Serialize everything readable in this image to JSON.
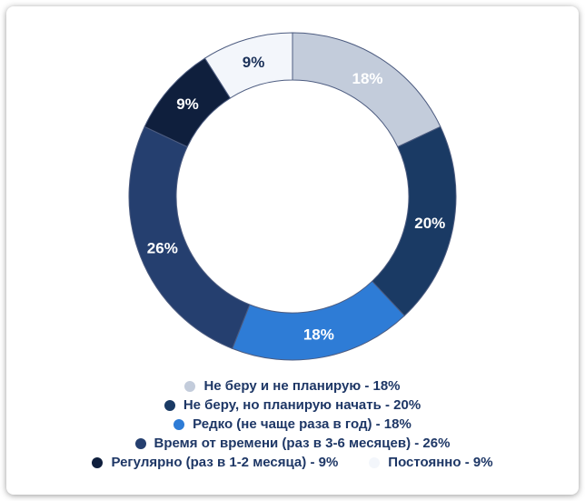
{
  "chart_data": {
    "type": "pie",
    "variant": "donut",
    "unit": "%",
    "total": 100,
    "start_angle_deg": 0,
    "direction": "clockwise",
    "inner_radius_ratio": 0.71,
    "grid": false,
    "legend_position": "bottom",
    "stroke_color": "#4d5c80",
    "legend_text_color": "#1e3766",
    "segments": [
      {
        "label": "Не беру и не планирую",
        "value": 18,
        "value_label": "18%",
        "color": "#c3ccdb",
        "value_label_color": "#ffffff",
        "legend": "Не беру и не планирую - 18%"
      },
      {
        "label": "Не беру, но планирую начать",
        "value": 20,
        "value_label": "20%",
        "color": "#1a3a64",
        "value_label_color": "#ffffff",
        "legend": "Не беру, но планирую начать - 20%"
      },
      {
        "label": "Редко (не чаще раза в год)",
        "value": 18,
        "value_label": "18%",
        "color": "#2e7cd6",
        "value_label_color": "#ffffff",
        "legend": "Редко (не чаще раза в год) - 18%"
      },
      {
        "label": "Время от времени (раз в 3-6 месяцев)",
        "value": 26,
        "value_label": "26%",
        "color": "#253f6f",
        "value_label_color": "#ffffff",
        "legend": "Время от времени (раз в 3-6 месяцев) - 26%"
      },
      {
        "label": "Регулярно (раз в 1-2 месяца)",
        "value": 9,
        "value_label": "9%",
        "color": "#0f1f3d",
        "value_label_color": "#ffffff",
        "legend": "Регулярно (раз в 1-2 месяца) - 9%"
      },
      {
        "label": "Постоянно",
        "value": 9,
        "value_label": "9%",
        "color": "#f3f6fb",
        "value_label_color": "#1b3159",
        "legend": "Постоянно - 9%"
      }
    ],
    "legend_rows": [
      [
        0
      ],
      [
        1
      ],
      [
        2
      ],
      [
        3
      ],
      [
        4,
        5
      ]
    ]
  }
}
